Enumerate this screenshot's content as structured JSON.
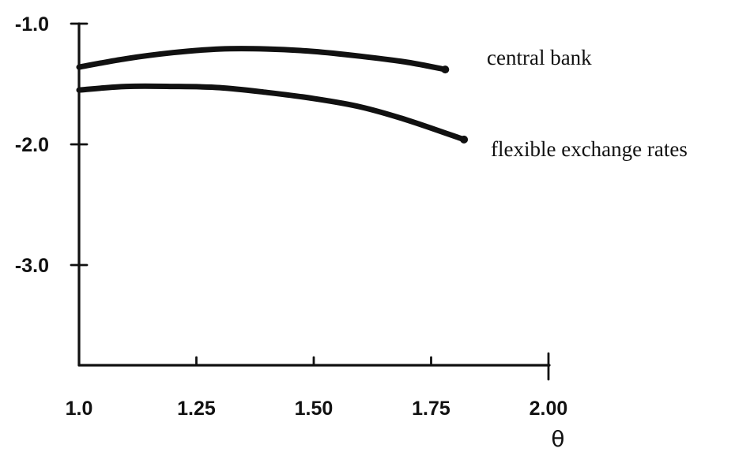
{
  "chart_data": {
    "type": "line",
    "xlabel": "θ",
    "ylabel": "",
    "xlim": [
      1.0,
      2.0
    ],
    "ylim": [
      -3.8,
      -1.0
    ],
    "x_ticks": [
      {
        "value": 1.0,
        "label": "1.0"
      },
      {
        "value": 1.25,
        "label": "1.25"
      },
      {
        "value": 1.5,
        "label": "1.50"
      },
      {
        "value": 1.75,
        "label": "1.75"
      },
      {
        "value": 2.0,
        "label": "2.00"
      }
    ],
    "y_ticks": [
      {
        "value": -1.0,
        "label": "-1.0"
      },
      {
        "value": -2.0,
        "label": "-2.0"
      },
      {
        "value": -3.0,
        "label": "-3.0"
      }
    ],
    "series": [
      {
        "name": "central bank",
        "x": [
          1.0,
          1.1,
          1.2,
          1.3,
          1.4,
          1.5,
          1.6,
          1.7,
          1.78
        ],
        "y": [
          -1.36,
          -1.29,
          -1.24,
          -1.21,
          -1.21,
          -1.23,
          -1.27,
          -1.32,
          -1.38
        ]
      },
      {
        "name": "flexible exchange rates",
        "x": [
          1.0,
          1.1,
          1.2,
          1.3,
          1.4,
          1.5,
          1.6,
          1.7,
          1.82
        ],
        "y": [
          -1.55,
          -1.52,
          -1.52,
          -1.53,
          -1.57,
          -1.62,
          -1.69,
          -1.8,
          -1.96
        ]
      }
    ],
    "grid": false,
    "legend": "direct labels at right end of each curve"
  }
}
